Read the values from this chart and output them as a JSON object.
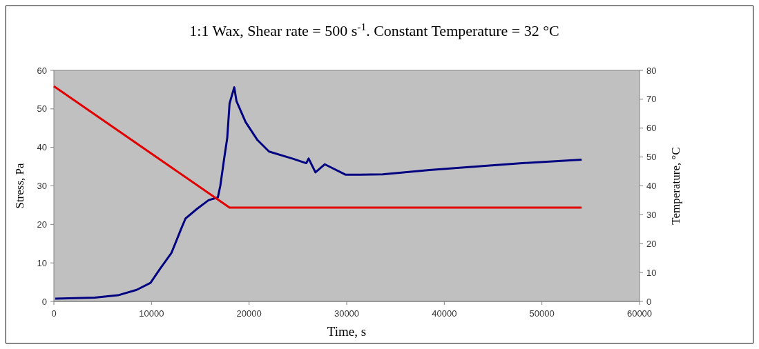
{
  "chart_data": {
    "type": "line",
    "title": "1:1 Wax, Shear rate = 500 s$^{-1}$.  Constant Temperature = 32 °C",
    "xlabel": "Time, s",
    "ylabel": "Stress, Pa",
    "y2label": "Temperature, °C",
    "xlim": [
      0,
      60000
    ],
    "xticks": [
      0,
      10000,
      20000,
      30000,
      40000,
      50000,
      60000
    ],
    "ylim": [
      0,
      60
    ],
    "yticks": [
      0,
      10,
      20,
      30,
      40,
      50,
      60
    ],
    "y2lim": [
      0,
      80
    ],
    "y2ticks": [
      0,
      10,
      20,
      30,
      40,
      50,
      60,
      70,
      80
    ],
    "grid": false,
    "marker": "none",
    "line_style": "solid",
    "series": [
      {
        "color": "#000080",
        "x": [
          143,
          4190,
          6570,
          8480,
          9900,
          10860,
          12050,
          13000,
          13480,
          14650,
          15860,
          16800,
          17050,
          17500,
          17760,
          18000,
          18480,
          18710,
          19640,
          20860,
          22050,
          24430,
          25860,
          26100,
          26800,
          27760,
          29900,
          31330,
          33700,
          38480,
          43200,
          48000,
          54070
        ],
        "values": [
          0.7,
          1,
          1.6,
          3.0,
          4.8,
          8.4,
          12.6,
          18.6,
          21.5,
          24,
          26.3,
          27,
          30,
          38,
          42.4,
          51.4,
          55.6,
          52,
          46.6,
          41.9,
          38.9,
          37.1,
          35.9,
          37.1,
          33.5,
          35.6,
          32.9,
          32.9,
          33,
          34.1,
          35,
          35.9,
          36.8
        ]
      },
      {
        "color": "#e00000",
        "axis": "y2",
        "x": [
          0,
          18000,
          54070
        ],
        "values": [
          74.5,
          32.5,
          32.5
        ]
      }
    ]
  }
}
